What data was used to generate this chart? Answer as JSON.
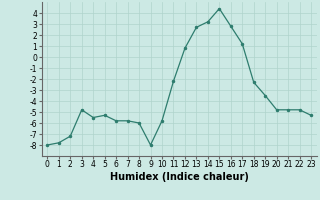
{
  "x": [
    0,
    1,
    2,
    3,
    4,
    5,
    6,
    7,
    8,
    9,
    10,
    11,
    12,
    13,
    14,
    15,
    16,
    17,
    18,
    19,
    20,
    21,
    22,
    23
  ],
  "y": [
    -8,
    -7.8,
    -7.2,
    -4.8,
    -5.5,
    -5.3,
    -5.8,
    -5.8,
    -6.0,
    -8.0,
    -5.8,
    -2.2,
    0.8,
    2.7,
    3.2,
    4.4,
    2.8,
    1.2,
    -2.3,
    -3.5,
    -4.8,
    -4.8,
    -4.8,
    -5.3
  ],
  "line_color": "#2e7d6e",
  "marker": "o",
  "marker_size": 1.5,
  "line_width": 0.9,
  "xlabel": "Humidex (Indice chaleur)",
  "ylim": [
    -9,
    5
  ],
  "xlim": [
    -0.5,
    23.5
  ],
  "yticks": [
    4,
    3,
    2,
    1,
    0,
    -1,
    -2,
    -3,
    -4,
    -5,
    -6,
    -7,
    -8
  ],
  "xticks": [
    0,
    1,
    2,
    3,
    4,
    5,
    6,
    7,
    8,
    9,
    10,
    11,
    12,
    13,
    14,
    15,
    16,
    17,
    18,
    19,
    20,
    21,
    22,
    23
  ],
  "bg_color": "#cce9e4",
  "grid_color": "#b0d4cc",
  "tick_fontsize": 5.5,
  "xlabel_fontsize": 7,
  "xlabel_fontweight": "bold"
}
